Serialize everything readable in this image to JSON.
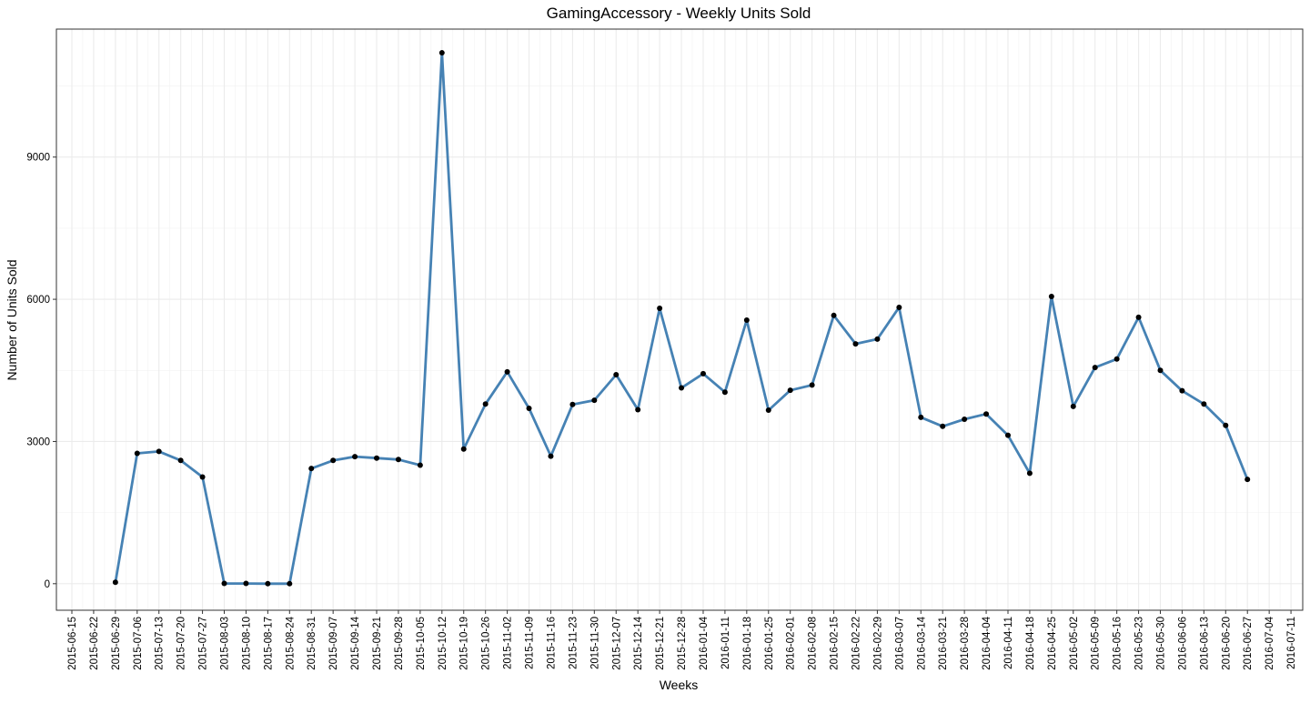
{
  "chart_data": {
    "type": "line",
    "title": "GamingAccessory - Weekly Units Sold",
    "xlabel": "Weeks",
    "ylabel": "Number of Units Sold",
    "y_ticks": [
      0,
      3000,
      6000,
      9000
    ],
    "y_tick_labels": [
      "0",
      "3000",
      "6000",
      "9000"
    ],
    "ylim": [
      -560,
      11700
    ],
    "x_tick_labels": [
      "2015-06-15",
      "2015-06-22",
      "2015-06-29",
      "2015-07-06",
      "2015-07-13",
      "2015-07-20",
      "2015-07-27",
      "2015-08-03",
      "2015-08-10",
      "2015-08-17",
      "2015-08-24",
      "2015-08-31",
      "2015-09-07",
      "2015-09-14",
      "2015-09-21",
      "2015-09-28",
      "2015-10-05",
      "2015-10-12",
      "2015-10-19",
      "2015-10-26",
      "2015-11-02",
      "2015-11-09",
      "2015-11-16",
      "2015-11-23",
      "2015-11-30",
      "2015-12-07",
      "2015-12-14",
      "2015-12-21",
      "2015-12-28",
      "2016-01-04",
      "2016-01-11",
      "2016-01-18",
      "2016-01-25",
      "2016-02-01",
      "2016-02-08",
      "2016-02-15",
      "2016-02-22",
      "2016-02-29",
      "2016-03-07",
      "2016-03-14",
      "2016-03-21",
      "2016-03-28",
      "2016-04-04",
      "2016-04-11",
      "2016-04-18",
      "2016-04-25",
      "2016-05-02",
      "2016-05-09",
      "2016-05-16",
      "2016-05-23",
      "2016-05-30",
      "2016-06-06",
      "2016-06-13",
      "2016-06-20",
      "2016-06-27",
      "2016-07-04",
      "2016-07-11"
    ],
    "series": [
      {
        "color": "#4682B4",
        "point_color": "#000000",
        "x": [
          "2015-06-29",
          "2015-07-06",
          "2015-07-13",
          "2015-07-20",
          "2015-07-27",
          "2015-08-03",
          "2015-08-10",
          "2015-08-17",
          "2015-08-24",
          "2015-08-31",
          "2015-09-07",
          "2015-09-14",
          "2015-09-21",
          "2015-09-28",
          "2015-10-05",
          "2015-10-12",
          "2015-10-19",
          "2015-10-26",
          "2015-11-02",
          "2015-11-09",
          "2015-11-16",
          "2015-11-23",
          "2015-11-30",
          "2015-12-07",
          "2015-12-14",
          "2015-12-21",
          "2015-12-28",
          "2016-01-04",
          "2016-01-11",
          "2016-01-18",
          "2016-01-25",
          "2016-02-01",
          "2016-02-08",
          "2016-02-15",
          "2016-02-22",
          "2016-02-29",
          "2016-03-07",
          "2016-03-14",
          "2016-03-21",
          "2016-03-28",
          "2016-04-04",
          "2016-04-11",
          "2016-04-18",
          "2016-04-25",
          "2016-05-02",
          "2016-05-09",
          "2016-05-16",
          "2016-05-23",
          "2016-05-30",
          "2016-06-06",
          "2016-06-13",
          "2016-06-20",
          "2016-06-27"
        ],
        "values": [
          30,
          2750,
          2790,
          2600,
          2250,
          5,
          5,
          0,
          0,
          2430,
          2600,
          2680,
          2650,
          2620,
          2500,
          11200,
          2840,
          3790,
          4470,
          3700,
          2690,
          3780,
          3870,
          4410,
          3670,
          5810,
          4130,
          4430,
          4040,
          5560,
          3660,
          4080,
          4190,
          5660,
          5060,
          5160,
          5830,
          3510,
          3320,
          3470,
          3580,
          3130,
          2330,
          6060,
          3740,
          4560,
          4740,
          5620,
          4500,
          4070,
          3790,
          3340,
          2200
        ]
      }
    ],
    "grid": true,
    "legend": "none"
  }
}
